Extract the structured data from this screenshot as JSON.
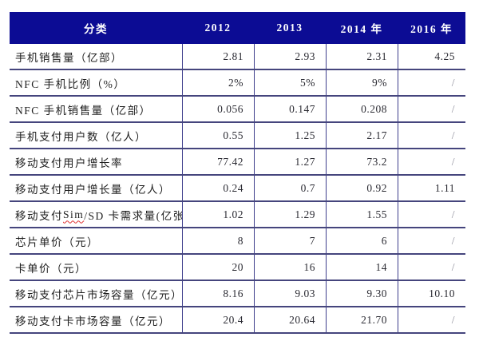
{
  "table": {
    "header_bg": "#0c0c94",
    "header_text_color": "#ffffff",
    "grid_color": "#45457d",
    "slash_color": "#8f8f9c"
  },
  "chart_data": {
    "type": "table",
    "columns": [
      "分类",
      "2012",
      "2013",
      "2014 年",
      "2016 年"
    ],
    "rows": [
      {
        "label": "手机销售量（亿部）",
        "values": [
          "2.81",
          "2.93",
          "2.31",
          "4.25"
        ]
      },
      {
        "label": "NFC 手机比例（%）",
        "values": [
          "2%",
          "5%",
          "9%",
          "/"
        ]
      },
      {
        "label": "NFC 手机销售量（亿部）",
        "values": [
          "0.056",
          "0.147",
          "0.208",
          "/"
        ]
      },
      {
        "label": "手机支付用户数（亿人）",
        "values": [
          "0.55",
          "1.25",
          "2.17",
          "/"
        ]
      },
      {
        "label": "移动支付用户增长率",
        "values": [
          "77.42",
          "1.27",
          "73.2",
          "/"
        ]
      },
      {
        "label": "移动支付用户增长量（亿人）",
        "values": [
          "0.24",
          "0.7",
          "0.92",
          "1.11"
        ]
      },
      {
        "label": "移动支付 Sim/SD 卡需求量(亿张)",
        "wavy_substring": "Sim",
        "values": [
          "1.02",
          "1.29",
          "1.55",
          "/"
        ]
      },
      {
        "label": "芯片单价（元）",
        "values": [
          "8",
          "7",
          "6",
          "/"
        ]
      },
      {
        "label": "卡单价（元）",
        "values": [
          "20",
          "16",
          "14",
          "/"
        ]
      },
      {
        "label": "移动支付芯片市场容量（亿元）",
        "values": [
          "8.16",
          "9.03",
          "9.30",
          "10.10"
        ]
      },
      {
        "label": "移动支付卡市场容量（亿元）",
        "values": [
          "20.4",
          "20.64",
          "21.70",
          "/"
        ]
      }
    ]
  }
}
